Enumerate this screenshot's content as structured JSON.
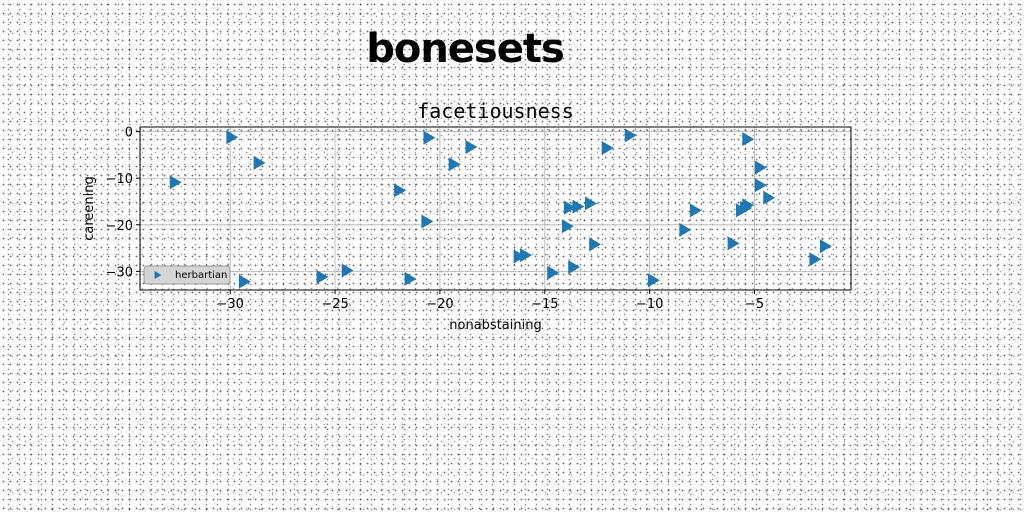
{
  "figure": {
    "suptitle": "bonesets"
  },
  "chart_data": {
    "type": "scatter",
    "title": "facetiousness",
    "xlabel": "nonabstaining",
    "ylabel": "careening",
    "xlim": [
      -34.3,
      -0.4
    ],
    "ylim": [
      -34,
      1
    ],
    "xticks": [
      -30,
      -25,
      -20,
      -15,
      -10,
      -5
    ],
    "yticks": [
      0,
      -10,
      -20,
      -30
    ],
    "grid": true,
    "legend": {
      "position": "lower-left"
    },
    "marker": "triangle-right",
    "series": [
      {
        "name": "herbartian",
        "color": "#1f77b4",
        "points": [
          {
            "x": -32.6,
            "y": -10.9
          },
          {
            "x": -29.9,
            "y": -1.2
          },
          {
            "x": -29.3,
            "y": -32.2
          },
          {
            "x": -28.6,
            "y": -6.7
          },
          {
            "x": -25.6,
            "y": -31.2
          },
          {
            "x": -24.4,
            "y": -29.8
          },
          {
            "x": -21.9,
            "y": -12.6
          },
          {
            "x": -21.4,
            "y": -31.6
          },
          {
            "x": -20.6,
            "y": -19.3
          },
          {
            "x": -20.5,
            "y": -1.3
          },
          {
            "x": -19.3,
            "y": -7.0
          },
          {
            "x": -18.5,
            "y": -3.3
          },
          {
            "x": -16.2,
            "y": -26.8
          },
          {
            "x": -15.9,
            "y": -26.5
          },
          {
            "x": -14.6,
            "y": -30.3
          },
          {
            "x": -13.9,
            "y": -20.3
          },
          {
            "x": -13.8,
            "y": -16.3
          },
          {
            "x": -13.6,
            "y": -29.1
          },
          {
            "x": -13.4,
            "y": -16.1
          },
          {
            "x": -12.8,
            "y": -15.4
          },
          {
            "x": -12.6,
            "y": -24.2
          },
          {
            "x": -12.0,
            "y": -3.5
          },
          {
            "x": -10.9,
            "y": -0.8
          },
          {
            "x": -9.8,
            "y": -31.9
          },
          {
            "x": -8.3,
            "y": -21.1
          },
          {
            "x": -7.8,
            "y": -16.9
          },
          {
            "x": -6.0,
            "y": -24.0
          },
          {
            "x": -5.6,
            "y": -16.9
          },
          {
            "x": -5.3,
            "y": -1.6
          },
          {
            "x": -5.3,
            "y": -15.8
          },
          {
            "x": -5.4,
            "y": -16.4
          },
          {
            "x": -4.7,
            "y": -7.7
          },
          {
            "x": -4.7,
            "y": -11.5
          },
          {
            "x": -4.3,
            "y": -14.2
          },
          {
            "x": -2.1,
            "y": -27.4
          },
          {
            "x": -1.6,
            "y": -24.6
          }
        ]
      }
    ]
  }
}
